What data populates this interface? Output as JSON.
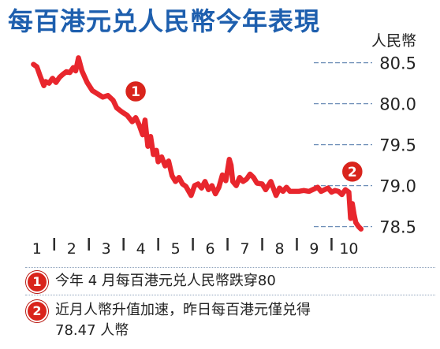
{
  "title": "每百港元兑人民幣今年表現",
  "colors": {
    "title": "#1e5fae",
    "line": "#e8262d",
    "badge": "#d9241c",
    "axis": "#2d2d2d",
    "grid": "#6f8fb8"
  },
  "chart_data": {
    "type": "line",
    "title": "每百港元兑人民幣今年表現",
    "xlabel": "",
    "ylabel": "人民幣",
    "y_unit_label": "人民幣",
    "ylim": [
      78.4,
      80.65
    ],
    "yticks": [
      80.5,
      80.0,
      79.5,
      79.0,
      78.5
    ],
    "ytick_labels": [
      "80.5",
      "80.0",
      "79.5",
      "79.0",
      "78.5"
    ],
    "xlim": [
      0.8,
      10.4
    ],
    "month_labels": [
      "1",
      "2",
      "3",
      "4",
      "5",
      "6",
      "7",
      "8",
      "9",
      "10"
    ],
    "month_positions": [
      1,
      2,
      3,
      4,
      5,
      6,
      7,
      8,
      9,
      10
    ],
    "grid": "horizontal dashed",
    "series": [
      {
        "x": [
          0.9,
          1.0,
          1.1,
          1.2,
          1.25,
          1.35,
          1.45,
          1.55,
          1.65,
          1.75,
          1.85,
          1.95,
          2.05,
          2.12,
          2.2,
          2.3,
          2.45,
          2.6,
          2.75,
          2.9,
          3.05,
          3.2,
          3.3,
          3.45,
          3.6,
          3.75,
          3.85,
          3.95,
          4.05,
          4.12,
          4.2,
          4.28,
          4.36,
          4.45,
          4.5,
          4.6,
          4.7,
          4.8,
          4.9,
          5.0,
          5.1,
          5.2,
          5.3,
          5.45,
          5.55,
          5.65,
          5.75,
          5.85,
          5.95,
          6.05,
          6.15,
          6.25,
          6.35,
          6.45,
          6.55,
          6.6,
          6.65,
          6.75,
          6.85,
          6.95,
          7.05,
          7.15,
          7.25,
          7.35,
          7.5,
          7.6,
          7.75,
          7.9,
          8.0,
          8.1,
          8.2,
          8.3,
          8.4,
          8.55,
          8.7,
          8.85,
          9.0,
          9.1,
          9.2,
          9.3,
          9.4,
          9.5,
          9.6,
          9.7,
          9.8,
          9.9,
          10.0,
          10.05,
          10.1,
          10.15,
          10.2,
          10.28,
          10.35
        ],
        "y": [
          80.48,
          80.45,
          80.33,
          80.22,
          80.27,
          80.25,
          80.31,
          80.26,
          80.32,
          80.36,
          80.39,
          80.38,
          80.44,
          80.4,
          80.56,
          80.4,
          80.26,
          80.16,
          80.12,
          80.08,
          80.1,
          80.04,
          79.95,
          79.9,
          79.86,
          79.78,
          79.83,
          79.74,
          79.62,
          79.8,
          79.48,
          79.6,
          79.38,
          79.43,
          79.29,
          79.35,
          79.24,
          79.3,
          79.12,
          79.05,
          79.1,
          79.02,
          78.99,
          78.88,
          79.0,
          79.02,
          78.97,
          79.05,
          78.95,
          79.0,
          78.9,
          78.98,
          79.13,
          79.06,
          79.32,
          79.25,
          79.05,
          79.0,
          79.1,
          79.05,
          79.08,
          79.14,
          79.1,
          79.03,
          79.02,
          78.95,
          79.05,
          78.88,
          78.97,
          78.93,
          78.98,
          78.93,
          78.93,
          78.93,
          78.94,
          78.93,
          78.96,
          78.98,
          78.93,
          78.95,
          78.97,
          78.92,
          78.94,
          78.93,
          78.89,
          78.95,
          78.92,
          78.6,
          78.78,
          78.65,
          78.55,
          78.5,
          78.47
        ]
      }
    ],
    "annotations": [
      {
        "label": "1",
        "x": 3.85,
        "y": 80.15
      },
      {
        "label": "2",
        "x": 10.1,
        "y": 79.17
      }
    ]
  },
  "notes": [
    {
      "num": "1",
      "lines": [
        "今年 4 月每百港元兑人民幣跌穿80"
      ]
    },
    {
      "num": "2",
      "lines": [
        "近月人幣升值加速，昨日每百港元僅兑得",
        "78.47 人幣"
      ]
    }
  ]
}
